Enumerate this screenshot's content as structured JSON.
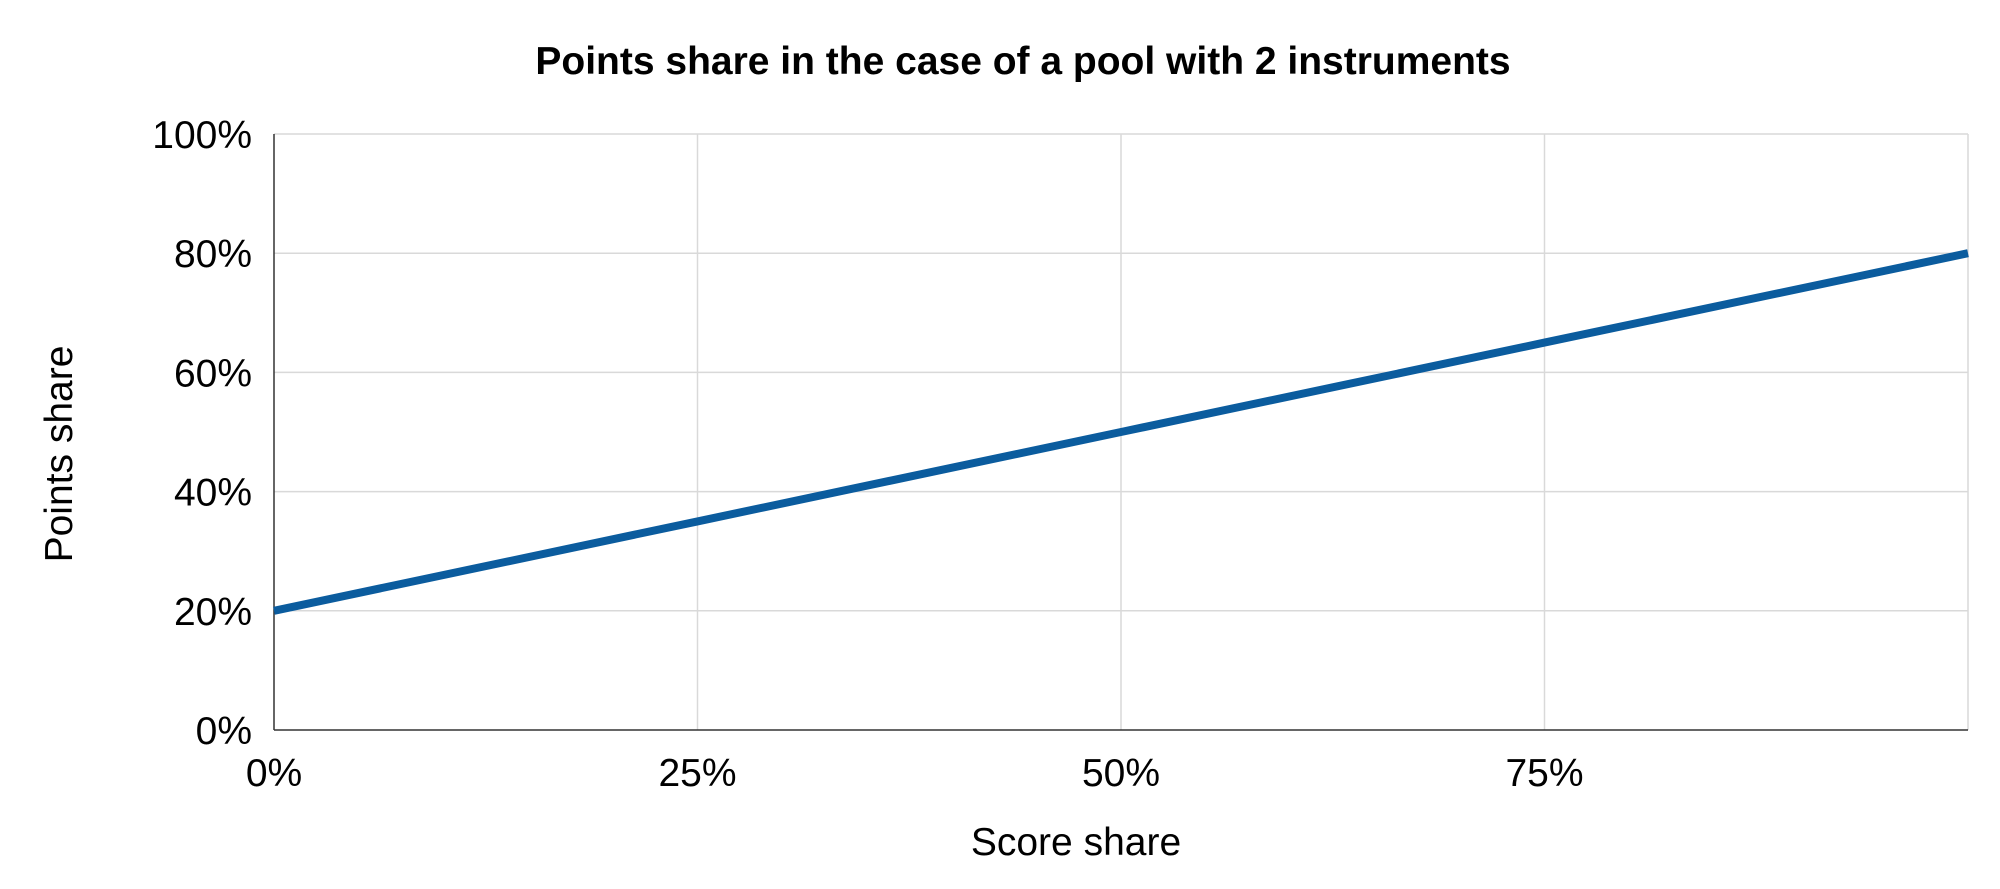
{
  "chart_data": {
    "type": "line",
    "title": "Points share in the case of a pool with 2 instruments",
    "xlabel": "Score share",
    "ylabel": "Points share",
    "x_tick_labels": [
      "0%",
      "25%",
      "50%",
      "75%"
    ],
    "y_tick_labels": [
      "0%",
      "20%",
      "40%",
      "60%",
      "80%",
      "100%"
    ],
    "xlim": [
      0,
      100
    ],
    "ylim": [
      0,
      100
    ],
    "grid": true,
    "legend": "none",
    "series": [
      {
        "x": [
          0,
          25,
          50,
          75,
          100
        ],
        "y": [
          20,
          35,
          50,
          65,
          80
        ],
        "color": "#0b5c9e"
      }
    ]
  }
}
